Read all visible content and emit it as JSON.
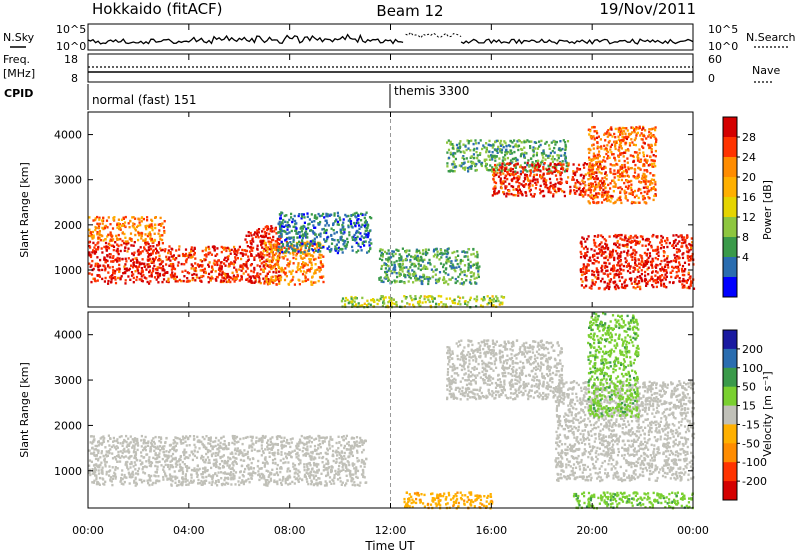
{
  "header": {
    "radar": "Hokkaido (fitACF)",
    "beam": "Beam 12",
    "date": "19/Nov/2011"
  },
  "strips": {
    "noise": {
      "left_label": "N.Sky",
      "right_label": "N.Search",
      "left_ticks": [
        "10^5",
        "10^0"
      ],
      "right_ticks": [
        "10^5",
        "10^0"
      ]
    },
    "freq": {
      "left_label_1": "Freq.",
      "left_label_2": "[MHz]",
      "right_label": "Nave",
      "left_ticks": [
        "18",
        "8"
      ],
      "right_ticks": [
        "60",
        "0"
      ]
    },
    "cpid": {
      "label": "CPID",
      "segments": [
        {
          "name": "normal (fast) 151",
          "start_ut": 0.0,
          "end_ut": 12.0
        },
        {
          "name": "themis 3300",
          "start_ut": 12.0,
          "end_ut": 24.0
        }
      ]
    }
  },
  "time_axis": {
    "label": "Time UT",
    "ticks": [
      "00:00",
      "04:00",
      "08:00",
      "12:00",
      "16:00",
      "20:00",
      "00:00"
    ]
  },
  "panels": {
    "power": {
      "ylabel": "Slant Range [km]",
      "colorbar_label": "Power [dB]",
      "colorbar_ticks": [
        "28",
        "24",
        "20",
        "16",
        "12",
        "8",
        "4"
      ]
    },
    "velocity": {
      "ylabel": "Slant Range [km]",
      "colorbar_label": "Velocity [m s⁻¹]",
      "colorbar_ticks": [
        "200",
        "100",
        "50",
        "15",
        "-15",
        "-50",
        "-100",
        "-200"
      ]
    },
    "range_ticks": [
      "4000",
      "3000",
      "2000",
      "1000"
    ]
  },
  "colors": {
    "power_scale": [
      "#d40000",
      "#ff3300",
      "#ff8c00",
      "#ffb000",
      "#e5d400",
      "#8dc63f",
      "#3a9a4a",
      "#2a6db0",
      "#0000ff"
    ],
    "velocity_scale": [
      "#1a1aa0",
      "#2a6db0",
      "#3a9a4a",
      "#7ad030",
      "#c0c0b8",
      "#ffb000",
      "#ff8c00",
      "#ff3300",
      "#d40000"
    ],
    "ground_scatter": "#c0c0b8"
  },
  "chart_data": {
    "type": "heatmap",
    "title": "Hokkaido (fitACF)",
    "xlabel": "Time UT",
    "xlim": [
      0,
      24
    ],
    "ylabel": "Slant Range [km]",
    "ylim": [
      180,
      4500
    ],
    "series": [
      {
        "name": "Power [dB]",
        "colorbar_range": [
          0,
          30
        ],
        "regions": [
          {
            "t": [
              0.0,
              3.0
            ],
            "r": [
              720,
              1650
            ],
            "value": 27
          },
          {
            "t": [
              0.0,
              3.0
            ],
            "r": [
              1650,
              2200
            ],
            "value": 22
          },
          {
            "t": [
              3.0,
              6.2
            ],
            "r": [
              750,
              1550
            ],
            "value": 26
          },
          {
            "t": [
              6.2,
              7.6
            ],
            "r": [
              700,
              2000
            ],
            "value": 27
          },
          {
            "t": [
              6.9,
              9.3
            ],
            "r": [
              700,
              1650
            ],
            "value": 21
          },
          {
            "t": [
              7.5,
              11.2
            ],
            "r": [
              1400,
              2300
            ],
            "value": 6
          },
          {
            "t": [
              10.0,
              16.5
            ],
            "r": [
              200,
              450
            ],
            "value": 13
          },
          {
            "t": [
              11.5,
              15.5
            ],
            "r": [
              700,
              1500
            ],
            "value": 9
          },
          {
            "t": [
              14.2,
              19.0
            ],
            "r": [
              3200,
              3900
            ],
            "value": 9
          },
          {
            "t": [
              16.0,
              20.5
            ],
            "r": [
              2650,
              3400
            ],
            "value": 26
          },
          {
            "t": [
              19.5,
              24.0
            ],
            "r": [
              600,
              1800
            ],
            "value": 27
          },
          {
            "t": [
              19.8,
              22.5
            ],
            "r": [
              2500,
              4200
            ],
            "value": 23
          }
        ]
      },
      {
        "name": "Velocity [m s⁻¹]",
        "colorbar_range": [
          -200,
          200
        ],
        "regions": [
          {
            "t": [
              0.0,
              11.0
            ],
            "r": [
              700,
              1800
            ],
            "value": 0
          },
          {
            "t": [
              12.5,
              16.0
            ],
            "r": [
              200,
              550
            ],
            "value": -60
          },
          {
            "t": [
              14.2,
              18.8
            ],
            "r": [
              2600,
              3900
            ],
            "value": 0
          },
          {
            "t": [
              18.5,
              24.0
            ],
            "r": [
              800,
              3000
            ],
            "value": 0
          },
          {
            "t": [
              19.8,
              21.8
            ],
            "r": [
              2200,
              4500
            ],
            "value": 60
          },
          {
            "t": [
              19.2,
              24.0
            ],
            "r": [
              200,
              550
            ],
            "value": 60
          }
        ]
      }
    ]
  }
}
